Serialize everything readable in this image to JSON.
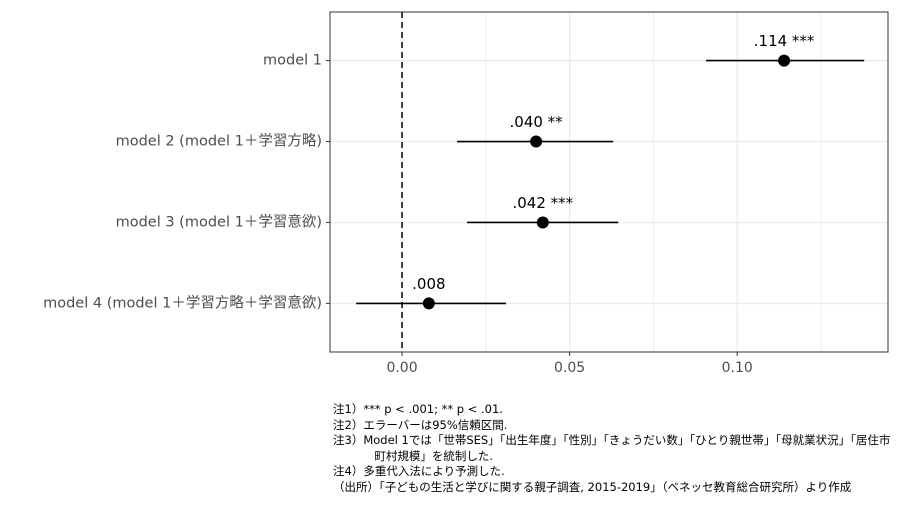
{
  "chart_data": {
    "type": "forest",
    "categories": [
      "model 1",
      "model 2 (model 1＋学習方略)",
      "model 3 (model 1＋学習意欲)",
      "model 4 (model 1＋学習方略＋学習意欲)"
    ],
    "values": [
      0.114,
      0.04,
      0.042,
      0.008
    ],
    "value_labels": [
      ".114 ***",
      ".040 **",
      ".042 ***",
      ".008"
    ],
    "lower": [
      0.0907,
      0.0164,
      0.0194,
      -0.0137
    ],
    "upper": [
      0.1379,
      0.063,
      0.0645,
      0.031
    ],
    "color": "#000000",
    "xlim": [
      -0.0215,
      0.145
    ],
    "xticks": [
      {
        "value": 0,
        "label": "0.00"
      },
      {
        "value": 0.05,
        "label": "0.05"
      },
      {
        "value": 0.1,
        "label": "0.10"
      }
    ],
    "minor_xticks": [
      0.025,
      0.075,
      0.125
    ],
    "reference_line": 0,
    "grid": true,
    "notes": [
      "注1）*** p < .001; ** p < .01.",
      "注2）エラーバーは95%信頼区間.",
      "注3）Model 1では「世帯SES」「出生年度」「性別」「きょうだい数」「ひとり親世帯」「母就業状況」「居住市町村規模」を統制した.",
      "注4）多重代入法により予測した.",
      "（出所）「子どもの生活と学びに関する親子調査, 2015-2019」（ベネッセ教育総合研究所）より作成"
    ]
  }
}
